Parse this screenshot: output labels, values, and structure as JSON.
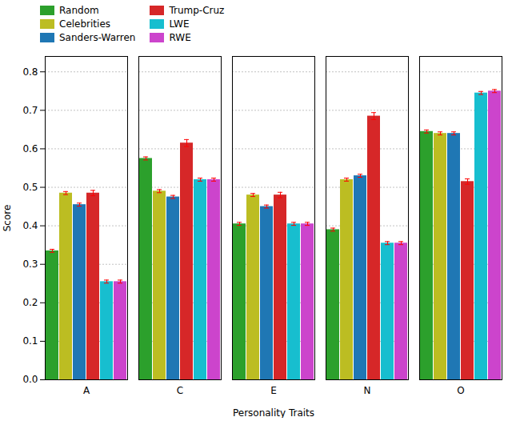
{
  "chart_data": {
    "type": "bar",
    "categories": [
      "A",
      "C",
      "E",
      "N",
      "O"
    ],
    "series": [
      {
        "name": "Random",
        "color": "#2ca02c",
        "values": [
          0.335,
          0.575,
          0.405,
          0.39,
          0.645
        ],
        "errors": [
          0.004,
          0.004,
          0.004,
          0.004,
          0.004
        ]
      },
      {
        "name": "Celebrities",
        "color": "#bcbd22",
        "values": [
          0.485,
          0.49,
          0.48,
          0.52,
          0.64
        ],
        "errors": [
          0.004,
          0.004,
          0.004,
          0.004,
          0.004
        ]
      },
      {
        "name": "Sanders-Warren",
        "color": "#1f77b4",
        "values": [
          0.455,
          0.475,
          0.45,
          0.53,
          0.64
        ],
        "errors": [
          0.004,
          0.004,
          0.004,
          0.004,
          0.004
        ]
      },
      {
        "name": "Trump-Cruz",
        "color": "#d62728",
        "values": [
          0.485,
          0.615,
          0.48,
          0.685,
          0.515
        ],
        "errors": [
          0.007,
          0.009,
          0.007,
          0.009,
          0.007
        ]
      },
      {
        "name": "LWE",
        "color": "#17becf",
        "values": [
          0.255,
          0.52,
          0.405,
          0.355,
          0.745
        ],
        "errors": [
          0.004,
          0.004,
          0.004,
          0.004,
          0.004
        ]
      },
      {
        "name": "RWE",
        "color": "#cc44cc",
        "values": [
          0.255,
          0.52,
          0.405,
          0.355,
          0.75
        ],
        "errors": [
          0.004,
          0.004,
          0.004,
          0.004,
          0.004
        ]
      }
    ],
    "xlabel": "Personality Traits",
    "ylabel": "Score",
    "ylim": [
      0.0,
      0.84
    ],
    "yticks": [
      {
        "value": 0.0,
        "label": "0.0"
      },
      0.1,
      0.2,
      0.3,
      0.4,
      0.5,
      0.6,
      0.7,
      0.8
    ],
    "grid": true,
    "legend": "upper left"
  }
}
